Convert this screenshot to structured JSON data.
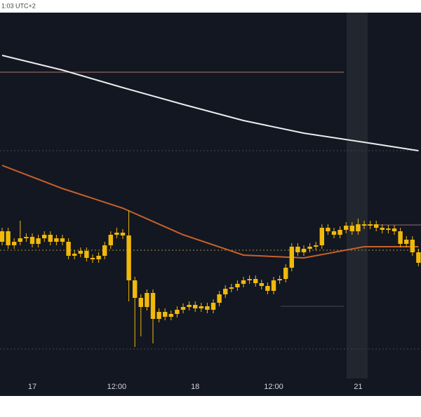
{
  "header": "1:03 UTC+2",
  "chart_data": {
    "type": "candlestick",
    "categories": [
      null,
      null,
      null,
      null,
      null,
      "17",
      null,
      null,
      null,
      null,
      null,
      null,
      null,
      null,
      null,
      null,
      null,
      null,
      null,
      "12:00",
      null,
      null,
      null,
      null,
      null,
      null,
      null,
      null,
      null,
      null,
      null,
      null,
      "18",
      null,
      null,
      null,
      null,
      null,
      null,
      null,
      null,
      null,
      null,
      null,
      null,
      "12:00",
      null,
      null,
      null,
      null,
      null,
      null,
      null,
      null,
      null,
      null,
      null,
      null,
      null,
      "21",
      null,
      null,
      null,
      null,
      null,
      null,
      null,
      null,
      null,
      null
    ],
    "open": [
      195,
      210,
      190,
      195,
      200,
      202,
      192,
      200,
      205,
      195,
      200,
      195,
      175,
      178,
      182,
      172,
      170,
      175,
      190,
      205,
      208,
      204,
      140,
      115,
      102,
      122,
      85,
      95,
      88,
      92,
      98,
      102,
      105,
      100,
      103,
      98,
      108,
      120,
      128,
      130,
      135,
      140,
      142,
      136,
      132,
      125,
      140,
      142,
      158,
      188,
      180,
      185,
      188,
      190,
      215,
      210,
      205,
      212,
      218,
      210,
      220,
      218,
      220,
      215,
      212,
      214,
      210,
      192,
      198,
      180
    ],
    "high": [
      215,
      215,
      200,
      225,
      207,
      207,
      205,
      210,
      210,
      205,
      205,
      200,
      183,
      187,
      187,
      177,
      180,
      195,
      210,
      215,
      213,
      240,
      145,
      120,
      127,
      127,
      100,
      100,
      97,
      103,
      107,
      110,
      110,
      108,
      108,
      113,
      125,
      133,
      135,
      140,
      145,
      147,
      147,
      141,
      137,
      145,
      147,
      163,
      193,
      193,
      190,
      193,
      195,
      220,
      220,
      215,
      217,
      223,
      223,
      228,
      225,
      225,
      225,
      220,
      219,
      219,
      215,
      203,
      203,
      185
    ],
    "low": [
      190,
      185,
      185,
      190,
      195,
      187,
      187,
      195,
      190,
      190,
      190,
      170,
      170,
      173,
      167,
      165,
      165,
      170,
      185,
      200,
      199,
      110,
      45,
      60,
      97,
      50,
      80,
      83,
      83,
      87,
      93,
      97,
      95,
      95,
      93,
      93,
      103,
      115,
      123,
      125,
      130,
      135,
      131,
      127,
      120,
      120,
      135,
      137,
      153,
      175,
      175,
      180,
      183,
      185,
      205,
      200,
      200,
      207,
      205,
      205,
      213,
      213,
      210,
      207,
      207,
      205,
      187,
      187,
      175,
      160
    ],
    "close": [
      210,
      190,
      195,
      200,
      202,
      192,
      200,
      205,
      195,
      200,
      195,
      175,
      178,
      182,
      172,
      170,
      175,
      190,
      205,
      208,
      204,
      140,
      115,
      102,
      122,
      85,
      95,
      88,
      92,
      98,
      102,
      105,
      100,
      103,
      98,
      108,
      120,
      128,
      130,
      135,
      140,
      142,
      136,
      132,
      125,
      140,
      142,
      158,
      188,
      180,
      185,
      188,
      190,
      215,
      210,
      205,
      212,
      218,
      210,
      220,
      218,
      220,
      215,
      212,
      214,
      210,
      192,
      198,
      180,
      165
    ],
    "color": "#f0b90b",
    "lines": [
      {
        "color": "#ececec",
        "x": [
          0,
          10,
          20,
          30,
          40,
          50,
          60,
          69
        ],
        "values": [
          461,
          440,
          415,
          391,
          368,
          350,
          337,
          325
        ]
      },
      {
        "color": "#c8612a",
        "x": [
          0,
          10,
          20,
          30,
          40,
          50,
          60,
          69
        ],
        "values": [
          304,
          271,
          243,
          205,
          176,
          172,
          188,
          188
        ]
      }
    ],
    "levels": [
      {
        "value": 437,
        "color": "#8a6a5a"
      },
      {
        "value": 325,
        "color": "#3a3f4c"
      },
      {
        "value": 183,
        "color": "#8a7a30"
      },
      {
        "value": 103,
        "color": "#3a3f4c"
      },
      {
        "value": 42,
        "color": "#3a3f4c"
      },
      {
        "value": 219,
        "color": "#7a5a6a"
      }
    ],
    "ylim": [
      0,
      522
    ]
  }
}
